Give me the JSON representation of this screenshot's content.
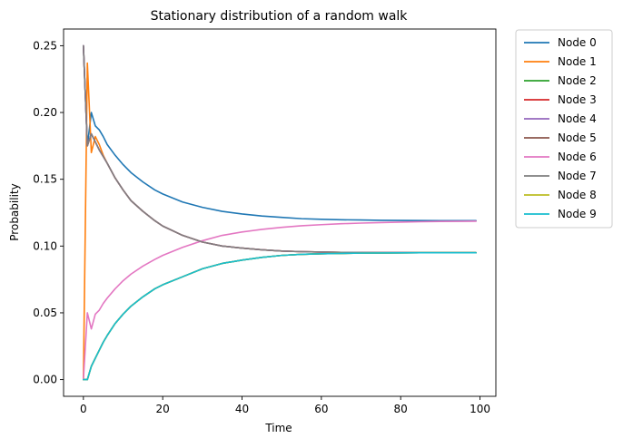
{
  "chart_data": {
    "type": "line",
    "title": "Stationary distribution of a random walk",
    "xlabel": "Time",
    "ylabel": "Probability",
    "xlim": [
      -5,
      104
    ],
    "ylim": [
      -0.0125,
      0.2625
    ],
    "xticks": [
      0,
      20,
      40,
      60,
      80,
      100
    ],
    "xtick_labels": [
      "0",
      "20",
      "40",
      "60",
      "80",
      "100"
    ],
    "yticks": [
      0.0,
      0.05,
      0.1,
      0.15,
      0.2,
      0.25
    ],
    "ytick_labels": [
      "0.00",
      "0.05",
      "0.10",
      "0.15",
      "0.20",
      "0.25"
    ],
    "grid": false,
    "legend_placement": "outside-top-right",
    "x": [
      0,
      1,
      2,
      3,
      4,
      5,
      6,
      8,
      10,
      12,
      15,
      18,
      20,
      25,
      30,
      35,
      40,
      45,
      50,
      55,
      60,
      65,
      70,
      75,
      80,
      85,
      90,
      95,
      99
    ],
    "series": [
      {
        "name": "Node 0",
        "color": "#1f77b4",
        "values": [
          0.25,
          0.175,
          0.2,
          0.19,
          0.187,
          0.182,
          0.176,
          0.168,
          0.161,
          0.155,
          0.148,
          0.142,
          0.139,
          0.133,
          0.129,
          0.126,
          0.124,
          0.1225,
          0.1215,
          0.1205,
          0.12,
          0.1197,
          0.1195,
          0.1193,
          0.1192,
          0.1191,
          0.119,
          0.119,
          0.119
        ]
      },
      {
        "name": "Node 1",
        "color": "#ff7f0e",
        "values": [
          0.0,
          0.237,
          0.17,
          0.182,
          0.176,
          0.168,
          0.162,
          0.151,
          0.142,
          0.134,
          0.126,
          0.119,
          0.115,
          0.108,
          0.103,
          0.1,
          0.0985,
          0.0972,
          0.0963,
          0.0958,
          0.0955,
          0.0953,
          0.0952,
          0.0951,
          0.0951,
          0.095,
          0.095,
          0.095,
          0.095
        ]
      },
      {
        "name": "Node 2",
        "color": "#2ca02c",
        "values": [
          0.0,
          0.0,
          0.01,
          0.016,
          0.022,
          0.028,
          0.033,
          0.042,
          0.049,
          0.055,
          0.062,
          0.068,
          0.071,
          0.077,
          0.083,
          0.087,
          0.0895,
          0.0915,
          0.093,
          0.0938,
          0.0942,
          0.0945,
          0.0947,
          0.0948,
          0.0949,
          0.095,
          0.095,
          0.095,
          0.095
        ]
      },
      {
        "name": "Node 3",
        "color": "#d62728",
        "values": [
          0.25,
          0.175,
          0.184,
          0.178,
          0.172,
          0.167,
          0.162,
          0.151,
          0.142,
          0.134,
          0.126,
          0.119,
          0.115,
          0.108,
          0.103,
          0.1,
          0.0985,
          0.0972,
          0.0963,
          0.0958,
          0.0955,
          0.0953,
          0.0952,
          0.0951,
          0.0951,
          0.095,
          0.095,
          0.095,
          0.095
        ]
      },
      {
        "name": "Node 4",
        "color": "#9467bd",
        "values": [
          0.25,
          0.175,
          0.184,
          0.178,
          0.172,
          0.167,
          0.162,
          0.151,
          0.142,
          0.134,
          0.126,
          0.119,
          0.115,
          0.108,
          0.103,
          0.1,
          0.0985,
          0.0972,
          0.0963,
          0.0958,
          0.0955,
          0.0953,
          0.0952,
          0.0951,
          0.0951,
          0.095,
          0.095,
          0.095,
          0.095
        ]
      },
      {
        "name": "Node 5",
        "color": "#8c564b",
        "values": [
          0.0,
          0.0,
          0.01,
          0.016,
          0.022,
          0.028,
          0.033,
          0.042,
          0.049,
          0.055,
          0.062,
          0.068,
          0.071,
          0.077,
          0.083,
          0.087,
          0.0895,
          0.0915,
          0.093,
          0.0938,
          0.0942,
          0.0945,
          0.0947,
          0.0948,
          0.0949,
          0.095,
          0.095,
          0.095,
          0.095
        ]
      },
      {
        "name": "Node 6",
        "color": "#e377c2",
        "values": [
          0.0,
          0.05,
          0.038,
          0.049,
          0.052,
          0.057,
          0.061,
          0.068,
          0.074,
          0.079,
          0.085,
          0.09,
          0.093,
          0.099,
          0.104,
          0.108,
          0.1105,
          0.1125,
          0.114,
          0.1152,
          0.116,
          0.1167,
          0.1172,
          0.1176,
          0.1179,
          0.1182,
          0.1184,
          0.1185,
          0.1186
        ]
      },
      {
        "name": "Node 7",
        "color": "#7f7f7f",
        "values": [
          0.25,
          0.175,
          0.184,
          0.178,
          0.172,
          0.167,
          0.162,
          0.151,
          0.142,
          0.134,
          0.126,
          0.119,
          0.115,
          0.108,
          0.103,
          0.1,
          0.0985,
          0.0972,
          0.0963,
          0.0958,
          0.0955,
          0.0953,
          0.0952,
          0.0951,
          0.0951,
          0.095,
          0.095,
          0.095,
          0.095
        ]
      },
      {
        "name": "Node 8",
        "color": "#bcbd22",
        "values": [
          0.0,
          0.0,
          0.01,
          0.016,
          0.022,
          0.028,
          0.033,
          0.042,
          0.049,
          0.055,
          0.062,
          0.068,
          0.071,
          0.077,
          0.083,
          0.087,
          0.0895,
          0.0915,
          0.093,
          0.0938,
          0.0942,
          0.0945,
          0.0947,
          0.0948,
          0.0949,
          0.095,
          0.095,
          0.095,
          0.095
        ]
      },
      {
        "name": "Node 9",
        "color": "#17becf",
        "values": [
          0.0,
          0.0,
          0.01,
          0.016,
          0.022,
          0.028,
          0.033,
          0.042,
          0.049,
          0.055,
          0.062,
          0.068,
          0.071,
          0.077,
          0.083,
          0.087,
          0.0895,
          0.0915,
          0.093,
          0.0938,
          0.0942,
          0.0945,
          0.0947,
          0.0948,
          0.0949,
          0.095,
          0.095,
          0.095,
          0.095
        ]
      }
    ]
  }
}
